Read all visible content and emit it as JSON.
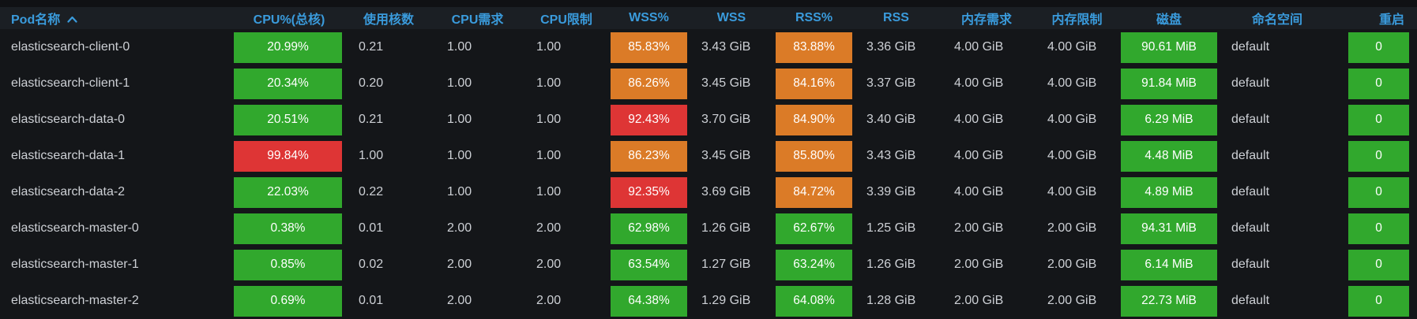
{
  "colors": {
    "green": "#31a82d",
    "orange": "#db7b27",
    "red": "#de3535",
    "header_blue": "#3a9bdc",
    "background": "#141619",
    "header_background": "#1b1f24",
    "top_strip": "#101114",
    "text": "#cdd0d5"
  },
  "table": {
    "columns": [
      {
        "label": "Pod名称",
        "sort": "asc"
      },
      {
        "label": "CPU%(总核)"
      },
      {
        "label": "使用核数"
      },
      {
        "label": "CPU需求"
      },
      {
        "label": "CPU限制"
      },
      {
        "label": "WSS%"
      },
      {
        "label": "WSS"
      },
      {
        "label": "RSS%"
      },
      {
        "label": "RSS"
      },
      {
        "label": "内存需求"
      },
      {
        "label": "内存限制"
      },
      {
        "label": "磁盘"
      },
      {
        "label": "命名空间"
      },
      {
        "label": "重启"
      }
    ],
    "rows": [
      {
        "pod": "elasticsearch-client-0",
        "cpu_pct": {
          "text": "20.99%",
          "color": "green"
        },
        "cores": "0.21",
        "cpu_req": "1.00",
        "cpu_lim": "1.00",
        "wss_pct": {
          "text": "85.83%",
          "color": "orange"
        },
        "wss": "3.43 GiB",
        "rss_pct": {
          "text": "83.88%",
          "color": "orange"
        },
        "rss": "3.36 GiB",
        "mem_req": "4.00 GiB",
        "mem_lim": "4.00 GiB",
        "disk": {
          "text": "90.61 MiB",
          "color": "green"
        },
        "namespace": "default",
        "restarts": {
          "text": "0",
          "color": "green"
        }
      },
      {
        "pod": "elasticsearch-client-1",
        "cpu_pct": {
          "text": "20.34%",
          "color": "green"
        },
        "cores": "0.20",
        "cpu_req": "1.00",
        "cpu_lim": "1.00",
        "wss_pct": {
          "text": "86.26%",
          "color": "orange"
        },
        "wss": "3.45 GiB",
        "rss_pct": {
          "text": "84.16%",
          "color": "orange"
        },
        "rss": "3.37 GiB",
        "mem_req": "4.00 GiB",
        "mem_lim": "4.00 GiB",
        "disk": {
          "text": "91.84 MiB",
          "color": "green"
        },
        "namespace": "default",
        "restarts": {
          "text": "0",
          "color": "green"
        }
      },
      {
        "pod": "elasticsearch-data-0",
        "cpu_pct": {
          "text": "20.51%",
          "color": "green"
        },
        "cores": "0.21",
        "cpu_req": "1.00",
        "cpu_lim": "1.00",
        "wss_pct": {
          "text": "92.43%",
          "color": "red"
        },
        "wss": "3.70 GiB",
        "rss_pct": {
          "text": "84.90%",
          "color": "orange"
        },
        "rss": "3.40 GiB",
        "mem_req": "4.00 GiB",
        "mem_lim": "4.00 GiB",
        "disk": {
          "text": "6.29 MiB",
          "color": "green"
        },
        "namespace": "default",
        "restarts": {
          "text": "0",
          "color": "green"
        }
      },
      {
        "pod": "elasticsearch-data-1",
        "cpu_pct": {
          "text": "99.84%",
          "color": "red"
        },
        "cores": "1.00",
        "cpu_req": "1.00",
        "cpu_lim": "1.00",
        "wss_pct": {
          "text": "86.23%",
          "color": "orange"
        },
        "wss": "3.45 GiB",
        "rss_pct": {
          "text": "85.80%",
          "color": "orange"
        },
        "rss": "3.43 GiB",
        "mem_req": "4.00 GiB",
        "mem_lim": "4.00 GiB",
        "disk": {
          "text": "4.48 MiB",
          "color": "green"
        },
        "namespace": "default",
        "restarts": {
          "text": "0",
          "color": "green"
        }
      },
      {
        "pod": "elasticsearch-data-2",
        "cpu_pct": {
          "text": "22.03%",
          "color": "green"
        },
        "cores": "0.22",
        "cpu_req": "1.00",
        "cpu_lim": "1.00",
        "wss_pct": {
          "text": "92.35%",
          "color": "red"
        },
        "wss": "3.69 GiB",
        "rss_pct": {
          "text": "84.72%",
          "color": "orange"
        },
        "rss": "3.39 GiB",
        "mem_req": "4.00 GiB",
        "mem_lim": "4.00 GiB",
        "disk": {
          "text": "4.89 MiB",
          "color": "green"
        },
        "namespace": "default",
        "restarts": {
          "text": "0",
          "color": "green"
        }
      },
      {
        "pod": "elasticsearch-master-0",
        "cpu_pct": {
          "text": "0.38%",
          "color": "green"
        },
        "cores": "0.01",
        "cpu_req": "2.00",
        "cpu_lim": "2.00",
        "wss_pct": {
          "text": "62.98%",
          "color": "green"
        },
        "wss": "1.26 GiB",
        "rss_pct": {
          "text": "62.67%",
          "color": "green"
        },
        "rss": "1.25 GiB",
        "mem_req": "2.00 GiB",
        "mem_lim": "2.00 GiB",
        "disk": {
          "text": "94.31 MiB",
          "color": "green"
        },
        "namespace": "default",
        "restarts": {
          "text": "0",
          "color": "green"
        }
      },
      {
        "pod": "elasticsearch-master-1",
        "cpu_pct": {
          "text": "0.85%",
          "color": "green"
        },
        "cores": "0.02",
        "cpu_req": "2.00",
        "cpu_lim": "2.00",
        "wss_pct": {
          "text": "63.54%",
          "color": "green"
        },
        "wss": "1.27 GiB",
        "rss_pct": {
          "text": "63.24%",
          "color": "green"
        },
        "rss": "1.26 GiB",
        "mem_req": "2.00 GiB",
        "mem_lim": "2.00 GiB",
        "disk": {
          "text": "6.14 MiB",
          "color": "green"
        },
        "namespace": "default",
        "restarts": {
          "text": "0",
          "color": "green"
        }
      },
      {
        "pod": "elasticsearch-master-2",
        "cpu_pct": {
          "text": "0.69%",
          "color": "green"
        },
        "cores": "0.01",
        "cpu_req": "2.00",
        "cpu_lim": "2.00",
        "wss_pct": {
          "text": "64.38%",
          "color": "green"
        },
        "wss": "1.29 GiB",
        "rss_pct": {
          "text": "64.08%",
          "color": "green"
        },
        "rss": "1.28 GiB",
        "mem_req": "2.00 GiB",
        "mem_lim": "2.00 GiB",
        "disk": {
          "text": "22.73 MiB",
          "color": "green"
        },
        "namespace": "default",
        "restarts": {
          "text": "0",
          "color": "green"
        }
      }
    ]
  }
}
